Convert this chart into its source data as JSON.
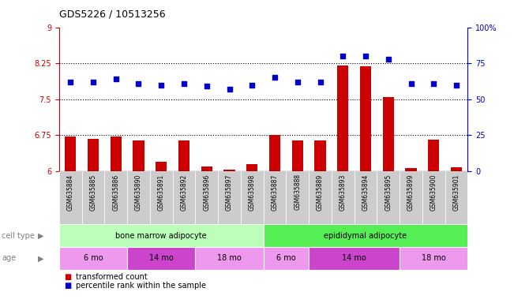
{
  "title": "GDS5226 / 10513256",
  "samples": [
    "GSM635884",
    "GSM635885",
    "GSM635886",
    "GSM635890",
    "GSM635891",
    "GSM635892",
    "GSM635896",
    "GSM635897",
    "GSM635898",
    "GSM635887",
    "GSM635888",
    "GSM635889",
    "GSM635893",
    "GSM635894",
    "GSM635895",
    "GSM635899",
    "GSM635900",
    "GSM635901"
  ],
  "bar_values": [
    6.72,
    6.68,
    6.72,
    6.64,
    6.19,
    6.64,
    6.1,
    6.04,
    6.14,
    6.75,
    6.64,
    6.64,
    8.2,
    8.18,
    7.55,
    6.06,
    6.65,
    6.08
  ],
  "scatter_values": [
    62,
    62,
    64,
    61,
    60,
    61,
    59,
    57,
    60,
    65,
    62,
    62,
    80,
    80,
    78,
    61,
    61,
    60
  ],
  "ylim_left": [
    6,
    9
  ],
  "ylim_right": [
    0,
    100
  ],
  "yticks_left": [
    6,
    6.75,
    7.5,
    8.25,
    9
  ],
  "yticks_right": [
    0,
    25,
    50,
    75,
    100
  ],
  "hlines": [
    6.75,
    7.5,
    8.25
  ],
  "bar_color": "#cc0000",
  "scatter_color": "#0000cc",
  "cell_type_groups": [
    {
      "label": "bone marrow adipocyte",
      "start": 0,
      "end": 9,
      "color": "#bbffbb"
    },
    {
      "label": "epididymal adipocyte",
      "start": 9,
      "end": 18,
      "color": "#55ee55"
    }
  ],
  "age_groups": [
    {
      "label": "6 mo",
      "start": 0,
      "end": 3,
      "color": "#ee99ee"
    },
    {
      "label": "14 mo",
      "start": 3,
      "end": 6,
      "color": "#cc44cc"
    },
    {
      "label": "18 mo",
      "start": 6,
      "end": 9,
      "color": "#ee99ee"
    },
    {
      "label": "6 mo",
      "start": 9,
      "end": 11,
      "color": "#ee99ee"
    },
    {
      "label": "14 mo",
      "start": 11,
      "end": 15,
      "color": "#cc44cc"
    },
    {
      "label": "18 mo",
      "start": 15,
      "end": 18,
      "color": "#ee99ee"
    }
  ],
  "cell_type_label": "cell type",
  "age_label": "age",
  "legend_bar_label": "transformed count",
  "legend_scatter_label": "percentile rank within the sample",
  "left_tick_color": "#cc0000",
  "right_tick_color": "#0000cc",
  "background_color": "#ffffff",
  "plot_bg_color": "#ffffff",
  "label_box_color": "#cccccc",
  "title_fontsize": 9,
  "tick_fontsize": 7,
  "label_fontsize": 7,
  "sample_fontsize": 5.5
}
